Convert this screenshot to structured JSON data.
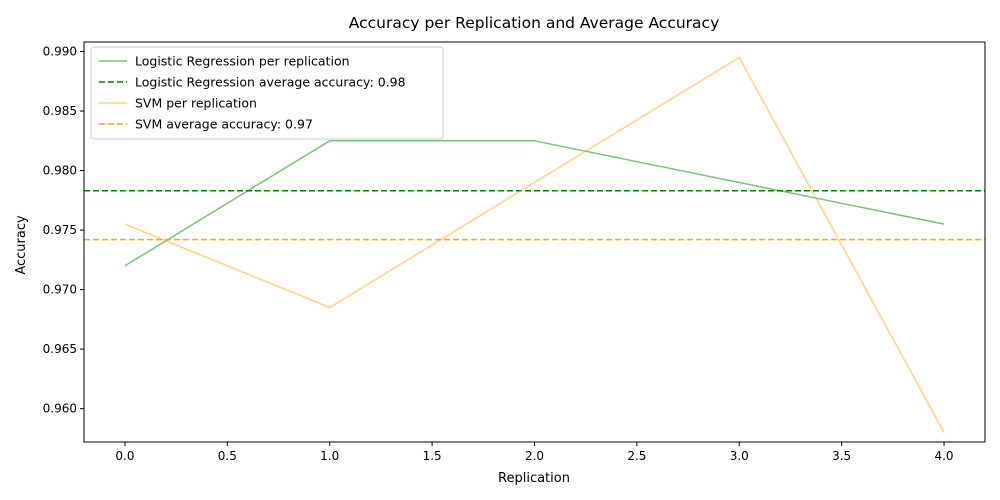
{
  "chart_data": {
    "type": "line",
    "title": "Accuracy per Replication and Average Accuracy",
    "xlabel": "Replication",
    "ylabel": "Accuracy",
    "xlim": [
      -0.2,
      4.2
    ],
    "ylim": [
      0.9572,
      0.9908
    ],
    "xticks": [
      0.0,
      0.5,
      1.0,
      1.5,
      2.0,
      2.5,
      3.0,
      3.5,
      4.0
    ],
    "xtick_labels": [
      "0.0",
      "0.5",
      "1.0",
      "1.5",
      "2.0",
      "2.5",
      "3.0",
      "3.5",
      "4.0"
    ],
    "yticks": [
      0.96,
      0.965,
      0.97,
      0.975,
      0.98,
      0.985,
      0.99
    ],
    "ytick_labels": [
      "0.960",
      "0.965",
      "0.970",
      "0.975",
      "0.980",
      "0.985",
      "0.990"
    ],
    "grid": false,
    "legend_position": "top-left",
    "x": [
      0,
      1,
      2,
      3,
      4
    ],
    "series": [
      {
        "name": "Logistic Regression per replication",
        "kind": "line",
        "color": "#008000",
        "opacity": 0.5,
        "dashed": false,
        "values": [
          0.972,
          0.9825,
          0.9825,
          0.979,
          0.9755
        ]
      },
      {
        "name": "Logistic Regression average accuracy: 0.98",
        "kind": "hline",
        "color": "#008000",
        "opacity": 1,
        "dashed": true,
        "value": 0.9783
      },
      {
        "name": "SVM per replication",
        "kind": "line",
        "color": "#ffa500",
        "opacity": 0.5,
        "dashed": false,
        "values": [
          0.9755,
          0.9685,
          0.979,
          0.9895,
          0.958
        ]
      },
      {
        "name": "SVM average accuracy: 0.97",
        "kind": "hline",
        "color": "#ffa500",
        "opacity": 1,
        "dashed": true,
        "value": 0.9742
      }
    ]
  }
}
